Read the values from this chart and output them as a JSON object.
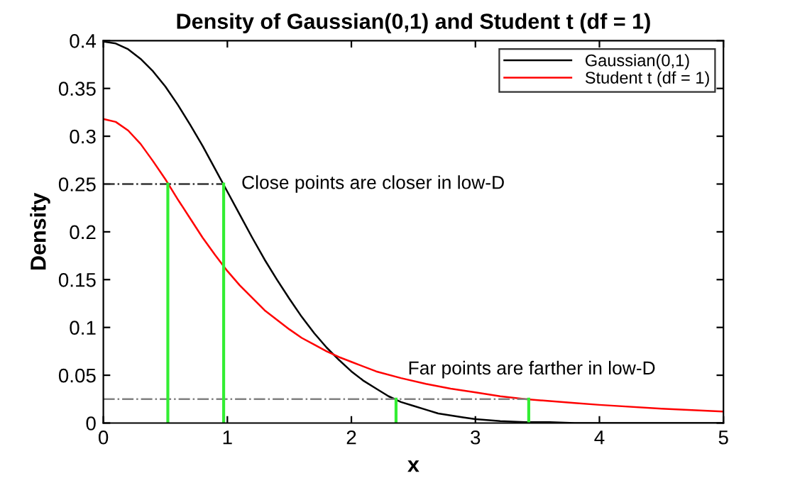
{
  "chart_data": {
    "type": "line",
    "title": "Density of Gaussian(0,1) and Student t (df = 1)",
    "xlabel": "x",
    "ylabel": "Density",
    "xlim": [
      0,
      5
    ],
    "ylim": [
      0,
      0.4
    ],
    "xticks": [
      0,
      1,
      2,
      3,
      4,
      5
    ],
    "yticks": [
      0,
      0.05,
      0.1,
      0.15,
      0.2,
      0.25,
      0.3,
      0.35,
      0.4
    ],
    "grid": false,
    "legend": "top right",
    "marker": "none",
    "series": [
      {
        "name": "Gaussian(0,1)",
        "color": "#000000",
        "line_style": "solid",
        "x": [
          0,
          0.1,
          0.2,
          0.3,
          0.4,
          0.5,
          0.6,
          0.7,
          0.8,
          0.9,
          1.0,
          1.1,
          1.2,
          1.3,
          1.4,
          1.5,
          1.6,
          1.7,
          1.8,
          1.9,
          2.0,
          2.1,
          2.2,
          2.3,
          2.4,
          2.5,
          2.6,
          2.7,
          2.8,
          2.9,
          3.0,
          3.2,
          3.4,
          3.6,
          3.8,
          4.0,
          4.5,
          5.0
        ],
        "values": [
          0.399,
          0.397,
          0.391,
          0.381,
          0.368,
          0.352,
          0.333,
          0.312,
          0.29,
          0.266,
          0.242,
          0.218,
          0.194,
          0.171,
          0.15,
          0.13,
          0.111,
          0.094,
          0.079,
          0.066,
          0.054,
          0.044,
          0.036,
          0.028,
          0.022,
          0.018,
          0.014,
          0.01,
          0.008,
          0.006,
          0.004,
          0.002,
          0.001,
          0.001,
          0.0,
          0.0,
          0.0,
          0.0
        ]
      },
      {
        "name": "Student t (df = 1)",
        "color": "#ff0000",
        "line_style": "solid",
        "x": [
          0,
          0.1,
          0.2,
          0.3,
          0.4,
          0.5,
          0.6,
          0.7,
          0.8,
          0.9,
          1.0,
          1.1,
          1.2,
          1.3,
          1.4,
          1.5,
          1.6,
          1.7,
          1.8,
          1.9,
          2.0,
          2.2,
          2.4,
          2.6,
          2.8,
          3.0,
          3.2,
          3.4,
          3.6,
          3.8,
          4.0,
          4.5,
          5.0
        ],
        "values": [
          0.318,
          0.315,
          0.306,
          0.292,
          0.274,
          0.255,
          0.234,
          0.214,
          0.194,
          0.176,
          0.159,
          0.144,
          0.131,
          0.118,
          0.108,
          0.098,
          0.089,
          0.082,
          0.075,
          0.069,
          0.064,
          0.054,
          0.047,
          0.041,
          0.036,
          0.032,
          0.028,
          0.025,
          0.023,
          0.021,
          0.019,
          0.015,
          0.012
        ]
      },
      {
        "color": "#333333",
        "line_style": "dashed",
        "x": [
          0,
          0.97
        ],
        "values": [
          0.25,
          0.25
        ]
      },
      {
        "color": "#808080",
        "line_style": "dashed",
        "x": [
          0,
          3.43
        ],
        "values": [
          0.025,
          0.025
        ]
      },
      {
        "color": "#33ee33",
        "line_style": "solid",
        "x": [
          0.52,
          0.52
        ],
        "values": [
          0,
          0.25
        ]
      },
      {
        "color": "#33ee33",
        "line_style": "solid",
        "x": [
          0.97,
          0.97
        ],
        "values": [
          0,
          0.25
        ]
      },
      {
        "color": "#33ee33",
        "line_style": "solid",
        "x": [
          2.36,
          2.36
        ],
        "values": [
          0,
          0.025
        ]
      },
      {
        "color": "#33ee33",
        "line_style": "solid",
        "x": [
          3.43,
          3.43
        ],
        "values": [
          0,
          0.025
        ]
      }
    ],
    "annotations": [
      {
        "text": "Close points are closer in low-D",
        "x": 0.97,
        "y": 0.25
      },
      {
        "text": "Far points are farther in low-D",
        "x": 2.36,
        "y": 0.025
      }
    ]
  }
}
